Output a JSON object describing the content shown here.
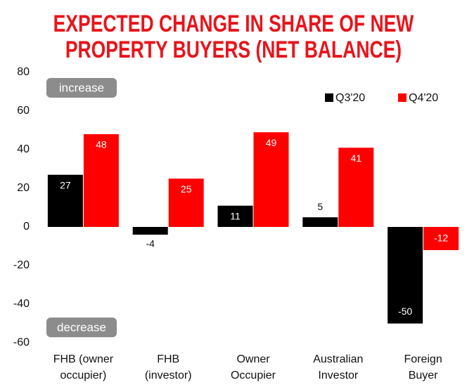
{
  "chart_data": {
    "type": "bar",
    "title": [
      "EXPECTED CHANGE IN SHARE OF NEW",
      "PROPERTY BUYERS (NET BALANCE)"
    ],
    "categories": [
      "FHB (owner occupier)",
      "FHB (investor)",
      "Owner Occupier",
      "Australian Investor",
      "Foreign Buyer"
    ],
    "series": [
      {
        "name": "Q3'20",
        "color": "#000000",
        "values": [
          27,
          -4,
          11,
          5,
          -50
        ]
      },
      {
        "name": "Q4'20",
        "color": "#ff0000",
        "values": [
          48,
          25,
          49,
          41,
          -12
        ]
      }
    ],
    "annotations": [
      "increase",
      "decrease"
    ],
    "ylim": [
      -60,
      80
    ],
    "yticks": [
      -60,
      -40,
      -20,
      0,
      20,
      40,
      60,
      80
    ],
    "grid": false,
    "legend": "top-right"
  }
}
